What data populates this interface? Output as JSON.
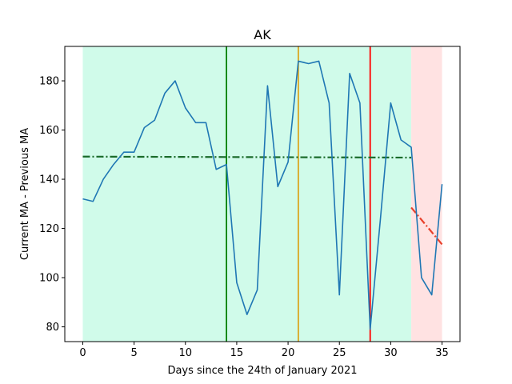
{
  "chart_data": {
    "type": "line",
    "title": "AK",
    "xlabel": "Days since the 24th of January 2021",
    "ylabel": "Current MA - Previous MA",
    "xlim": [
      -1.75,
      36.75
    ],
    "ylim": [
      74,
      194
    ],
    "grid": false,
    "legend": "none",
    "xticks": [
      0,
      5,
      10,
      15,
      20,
      25,
      30,
      35
    ],
    "yticks": [
      80,
      100,
      120,
      140,
      160,
      180
    ],
    "series": [
      {
        "color": "#1f77b4",
        "x": [
          0,
          1,
          2,
          3,
          4,
          5,
          6,
          7,
          8,
          9,
          10,
          11,
          12,
          13,
          14,
          15,
          16,
          17,
          18,
          19,
          20,
          21,
          22,
          23,
          24,
          25,
          26,
          27,
          28,
          29,
          30,
          31,
          32,
          33,
          34,
          35
        ],
        "values": [
          132,
          131,
          140,
          146,
          151,
          151,
          161,
          164,
          175,
          180,
          169,
          163,
          163,
          144,
          146,
          98,
          85,
          95,
          178,
          137,
          147,
          188,
          187,
          188,
          171,
          93,
          183,
          171,
          79,
          124,
          171,
          156,
          153,
          100,
          93,
          138
        ]
      }
    ],
    "trend_lines": [
      {
        "color": "#1a6b2a",
        "style": "dash-dot",
        "x": [
          0,
          32
        ],
        "y": [
          149.2,
          148.8
        ]
      },
      {
        "color": "#e8412c",
        "style": "dash-dot",
        "x": [
          32,
          35
        ],
        "y": [
          128.5,
          113.5
        ]
      }
    ],
    "vertical_lines": [
      {
        "x": 14,
        "color": "#008000"
      },
      {
        "x": 21,
        "color": "#daa520"
      },
      {
        "x": 28,
        "color": "#ff0000"
      }
    ],
    "shaded_regions": [
      {
        "x": [
          0,
          32
        ],
        "color": "#d0fbea"
      },
      {
        "x": [
          32,
          35
        ],
        "color": "#ffe2e2"
      }
    ]
  }
}
